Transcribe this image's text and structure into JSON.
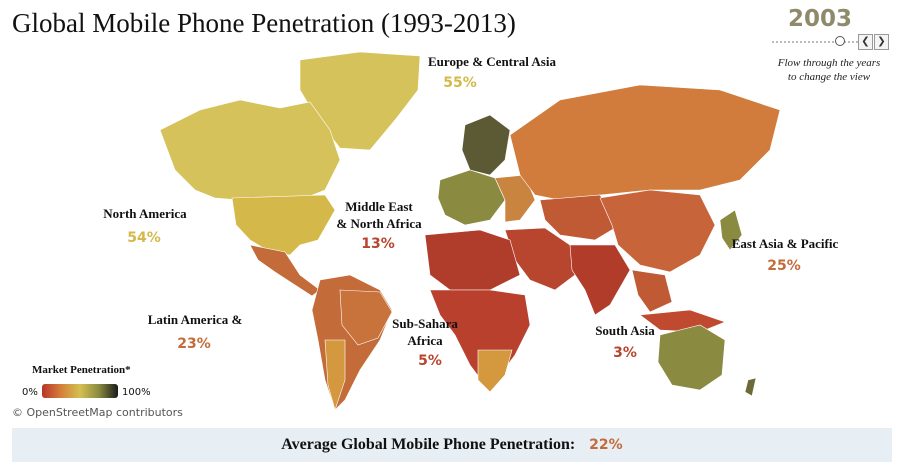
{
  "title": "Global Mobile Phone Penetration (1993-2013)",
  "year_control": {
    "year": "2003",
    "note_line1": "Flow through the years",
    "note_line2": "to change the view",
    "prev_icon": "chevron-left-icon",
    "next_icon": "chevron-right-icon"
  },
  "regions": [
    {
      "name": "Europe & Central Asia",
      "value": "55%",
      "color": "#d4b94a"
    },
    {
      "name": "North America",
      "value": "54%",
      "color": "#d4b94a"
    },
    {
      "name_line1": "Middle East",
      "name_line2": "& North Africa",
      "value": "13%",
      "color": "#b8452e"
    },
    {
      "name": "East Asia & Pacific",
      "value": "25%",
      "color": "#c46b3a"
    },
    {
      "name": "Latin America &",
      "value": "23%",
      "color": "#c46b3a"
    },
    {
      "name_line1": "Sub-Sahara",
      "name_line2": "Africa",
      "value": "5%",
      "color": "#b8452e"
    },
    {
      "name": "South Asia",
      "value": "3%",
      "color": "#b8452e"
    }
  ],
  "legend": {
    "title": "Market Penetration*",
    "min_label": "0%",
    "max_label": "100%",
    "gradient": [
      "#b8352a",
      "#d4803a",
      "#d4c050",
      "#8a8a40",
      "#1a1a1a"
    ]
  },
  "attribution": "© OpenStreetMap contributors",
  "footer": {
    "label": "Average Global Mobile Phone Penetration:",
    "value": "22%",
    "value_color": "#c46b3a"
  }
}
